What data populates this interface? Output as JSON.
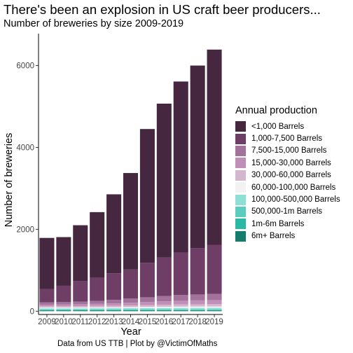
{
  "chart_data": {
    "type": "bar",
    "stacked": true,
    "title": "There's been an explosion in US craft beer producers...",
    "subtitle": "Number of breweries by size 2009-2019",
    "xlabel": "Year",
    "ylabel": "Number of breweries",
    "caption": "Data from US TTB | Plot by @VictimOfMaths",
    "ylim": [
      -80,
      6780
    ],
    "yticks": [
      0,
      2000,
      4000,
      6000
    ],
    "grid": false,
    "legend": {
      "title": "Annual production",
      "position": "right"
    },
    "categories": [
      "2009",
      "2010",
      "2011",
      "2012",
      "2013",
      "2014",
      "2015",
      "2016",
      "2017",
      "2018",
      "2019"
    ],
    "series": [
      {
        "name": "6m+ Barrels",
        "color": "#137e6d",
        "values": [
          20,
          20,
          20,
          20,
          20,
          20,
          20,
          20,
          20,
          20,
          20
        ]
      },
      {
        "name": "1m-6m Barrels",
        "color": "#2ab9a5",
        "values": [
          15,
          15,
          15,
          15,
          15,
          15,
          15,
          15,
          15,
          15,
          15
        ]
      },
      {
        "name": "500,000-1m Barrels",
        "color": "#5bcdbe",
        "values": [
          10,
          10,
          10,
          10,
          10,
          10,
          10,
          10,
          10,
          10,
          10
        ]
      },
      {
        "name": "100,000-500,000 Barrels",
        "color": "#8ee0d6",
        "values": [
          25,
          25,
          25,
          27,
          28,
          30,
          32,
          34,
          35,
          36,
          37
        ]
      },
      {
        "name": "60,000-100,000 Barrels",
        "color": "#f2f2f2",
        "values": [
          20,
          20,
          22,
          22,
          24,
          26,
          28,
          30,
          32,
          33,
          33
        ]
      },
      {
        "name": "30,000-60,000 Barrels",
        "color": "#d5b6cf",
        "values": [
          30,
          30,
          33,
          35,
          38,
          42,
          46,
          50,
          53,
          55,
          57
        ]
      },
      {
        "name": "15,000-30,000 Barrels",
        "color": "#c08fb8",
        "values": [
          40,
          42,
          45,
          50,
          57,
          65,
          75,
          83,
          90,
          95,
          100
        ]
      },
      {
        "name": "7,500-15,000 Barrels",
        "color": "#a3729b",
        "values": [
          55,
          60,
          65,
          75,
          85,
          100,
          115,
          130,
          140,
          145,
          150
        ]
      },
      {
        "name": "1,000-7,500 Barrels",
        "color": "#6e3e66",
        "values": [
          330,
          400,
          500,
          560,
          650,
          710,
          840,
          940,
          1040,
          1130,
          1200
        ]
      },
      {
        "name": "<1,000 Barrels",
        "color": "#45273f",
        "values": [
          1245,
          1188,
          1365,
          1606,
          1928,
          2357,
          3269,
          3758,
          4175,
          4461,
          4768
        ]
      }
    ]
  }
}
